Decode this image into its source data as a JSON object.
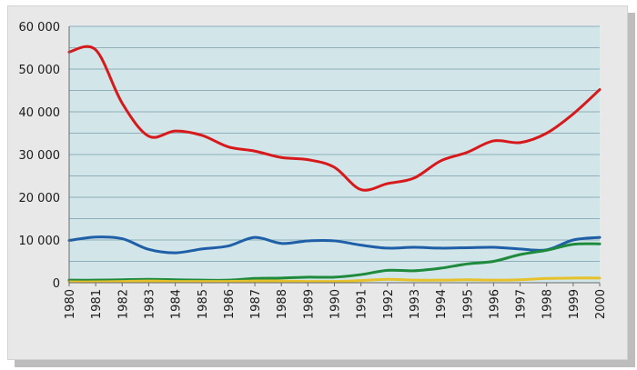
{
  "chart_data": {
    "type": "line",
    "title": "",
    "xlabel": "",
    "ylabel": "",
    "x": [
      "1980",
      "1981",
      "1982",
      "1983",
      "1984",
      "1985",
      "1986",
      "1987",
      "1988",
      "1989",
      "1990",
      "1991",
      "1992",
      "1993",
      "1994",
      "1995",
      "1996",
      "1997",
      "1998",
      "1999",
      "2000"
    ],
    "ylim": [
      0,
      60000
    ],
    "y_ticks": [
      0,
      10000,
      20000,
      30000,
      40000,
      50000,
      60000
    ],
    "y_tick_labels": [
      "0",
      "10 000",
      "20 000",
      "30 000",
      "40 000",
      "50 000",
      "60 000"
    ],
    "grid": true,
    "minor_grid_step": 5000,
    "plot_background": "#d2e5e8",
    "grid_color": "#8fb0bb",
    "legend": "none",
    "series": [
      {
        "color": "#d7191c",
        "values": [
          54000,
          54500,
          42000,
          34300,
          35500,
          34500,
          31800,
          30800,
          29300,
          28800,
          27000,
          21800,
          23200,
          24500,
          28500,
          30500,
          33200,
          32800,
          35000,
          39500,
          45200
        ]
      },
      {
        "color": "#1f5fa8",
        "values": [
          9900,
          10700,
          10300,
          7800,
          7000,
          7900,
          8600,
          10600,
          9200,
          9800,
          9800,
          8800,
          8100,
          8300,
          8100,
          8200,
          8300,
          7900,
          7700,
          10000,
          10600
        ]
      },
      {
        "color": "#1e8a3c",
        "values": [
          600,
          600,
          700,
          800,
          700,
          600,
          600,
          1000,
          1100,
          1300,
          1300,
          1900,
          2900,
          2800,
          3400,
          4400,
          5000,
          6600,
          7600,
          9000,
          9100
        ]
      },
      {
        "color": "#e6c12a",
        "values": [
          200,
          200,
          300,
          400,
          300,
          300,
          300,
          400,
          400,
          300,
          300,
          500,
          800,
          600,
          600,
          700,
          600,
          700,
          1000,
          1100,
          1100
        ]
      }
    ]
  }
}
